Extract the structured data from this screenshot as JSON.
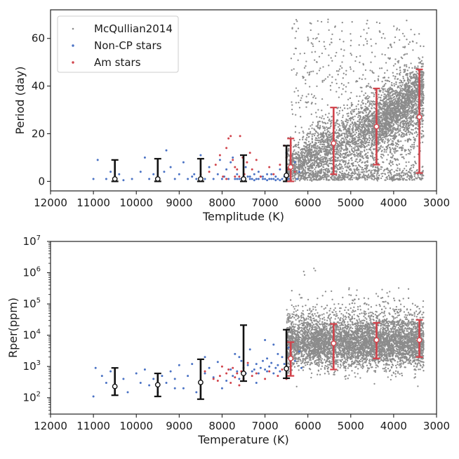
{
  "colors": {
    "mcq": "#8c8c8c",
    "noncp": "#4a72c4",
    "am": "#d1434b",
    "axis": "#222222",
    "black_err": "#111111"
  },
  "legend": {
    "items": [
      {
        "label": "McQullian2014",
        "color_key": "mcq",
        "marker": "dot"
      },
      {
        "label": "Non-CP stars",
        "color_key": "noncp",
        "marker": "dot"
      },
      {
        "label": "Am stars",
        "color_key": "am",
        "marker": "dot"
      }
    ],
    "location": "top-left"
  },
  "chart_data": [
    {
      "type": "scatter",
      "title": "",
      "xlabel": "Templitude (K)",
      "ylabel": "Period (day)",
      "xlim": [
        12000,
        3000
      ],
      "ylim": [
        -4,
        72
      ],
      "yscale": "linear",
      "xticks": [
        12000,
        11000,
        10000,
        9000,
        8000,
        7000,
        6000,
        5000,
        4000,
        3000
      ],
      "yticks": [
        0,
        20,
        40,
        60
      ],
      "series": [
        {
          "name": "McQullian2014",
          "color_key": "mcq",
          "distribution": "dense cloud 6500-3000 K, period 0-70 d"
        },
        {
          "name": "Non-CP stars",
          "color_key": "noncp",
          "points": [
            [
              11000,
              1
            ],
            [
              10900,
              9
            ],
            [
              10700,
              1
            ],
            [
              10600,
              4
            ],
            [
              10400,
              3
            ],
            [
              10300,
              0.5
            ],
            [
              10100,
              1
            ],
            [
              9900,
              4
            ],
            [
              9800,
              10
            ],
            [
              9700,
              1
            ],
            [
              9600,
              3
            ],
            [
              9500,
              1
            ],
            [
              9350,
              4
            ],
            [
              9300,
              13
            ],
            [
              9200,
              6
            ],
            [
              9100,
              1
            ],
            [
              9000,
              3
            ],
            [
              8900,
              8
            ],
            [
              8800,
              1
            ],
            [
              8700,
              2
            ],
            [
              8650,
              3
            ],
            [
              8600,
              1
            ],
            [
              8500,
              11
            ],
            [
              8400,
              1
            ],
            [
              8300,
              6
            ],
            [
              8200,
              1
            ],
            [
              8100,
              3
            ],
            [
              8050,
              9
            ],
            [
              8000,
              1
            ],
            [
              7950,
              2
            ],
            [
              7900,
              5
            ],
            [
              7850,
              1
            ],
            [
              7800,
              8
            ],
            [
              7750,
              10
            ],
            [
              7700,
              1
            ],
            [
              7650,
              3
            ],
            [
              7600,
              1
            ],
            [
              7550,
              1
            ],
            [
              7500,
              1
            ],
            [
              7450,
              6
            ],
            [
              7400,
              2
            ],
            [
              7350,
              1
            ],
            [
              7300,
              1
            ],
            [
              7250,
              3
            ],
            [
              7200,
              1
            ],
            [
              7150,
              1
            ],
            [
              7100,
              2
            ],
            [
              7050,
              1
            ],
            [
              7000,
              1
            ],
            [
              6950,
              3
            ],
            [
              6900,
              1
            ],
            [
              6850,
              1
            ],
            [
              6800,
              1
            ],
            [
              6750,
              2
            ],
            [
              6700,
              1
            ],
            [
              6650,
              5
            ],
            [
              6600,
              1
            ],
            [
              6550,
              2
            ],
            [
              6500,
              12
            ],
            [
              6450,
              1
            ],
            [
              6400,
              3
            ],
            [
              6300,
              8
            ],
            [
              6250,
              1
            ],
            [
              6200,
              4
            ],
            [
              7650,
              1
            ],
            [
              7350,
              2
            ],
            [
              7050,
              2
            ],
            [
              6850,
              3
            ],
            [
              6750,
              0.5
            ],
            [
              6650,
              0.5
            ],
            [
              6950,
              0.5
            ],
            [
              7250,
              0.5
            ],
            [
              7150,
              4
            ]
          ]
        },
        {
          "name": "Am stars",
          "color_key": "am",
          "points": [
            [
              8300,
              4
            ],
            [
              8150,
              7
            ],
            [
              8050,
              11
            ],
            [
              7980,
              2
            ],
            [
              7900,
              14
            ],
            [
              7850,
              18
            ],
            [
              7800,
              19
            ],
            [
              7750,
              9
            ],
            [
              7700,
              6
            ],
            [
              7650,
              5
            ],
            [
              7580,
              19
            ],
            [
              7520,
              10
            ],
            [
              7480,
              3
            ],
            [
              7420,
              8
            ],
            [
              7350,
              12
            ],
            [
              7300,
              5
            ],
            [
              7200,
              9
            ],
            [
              7100,
              2
            ],
            [
              6900,
              6
            ],
            [
              6800,
              3
            ],
            [
              6650,
              7
            ],
            [
              6550,
              15
            ],
            [
              6500,
              10
            ],
            [
              6450,
              5
            ],
            [
              6400,
              2
            ],
            [
              6300,
              4
            ],
            [
              8500,
              3
            ],
            [
              7600,
              2
            ],
            [
              7900,
              1
            ],
            [
              7700,
              2
            ]
          ]
        }
      ],
      "summary_points": [
        {
          "x": 10500,
          "median": 1.0,
          "low": 0.0,
          "high": 9.0,
          "color_key": "black_err"
        },
        {
          "x": 9500,
          "median": 1.0,
          "low": 0.0,
          "high": 9.5,
          "color_key": "black_err"
        },
        {
          "x": 8500,
          "median": 1.0,
          "low": 0.0,
          "high": 9.5,
          "color_key": "black_err"
        },
        {
          "x": 7500,
          "median": 1.0,
          "low": 0.0,
          "high": 11.0,
          "color_key": "black_err"
        },
        {
          "x": 6500,
          "median": 2.5,
          "low": 0.0,
          "high": 15.0,
          "color_key": "black_err"
        },
        {
          "x": 6400,
          "median": 6.0,
          "low": 0.0,
          "high": 18.0,
          "color_key": "am"
        },
        {
          "x": 5400,
          "median": 16.0,
          "low": 3.0,
          "high": 31.0,
          "color_key": "am"
        },
        {
          "x": 4400,
          "median": 23.0,
          "low": 7.0,
          "high": 39.0,
          "color_key": "am"
        },
        {
          "x": 3400,
          "median": 27.0,
          "low": 3.5,
          "high": 47.0,
          "color_key": "am"
        }
      ]
    },
    {
      "type": "scatter",
      "title": "",
      "xlabel": "Temperature (K)",
      "ylabel": "Rper(ppm)",
      "xlim": [
        12000,
        3000
      ],
      "ylim": [
        30,
        10000000
      ],
      "yscale": "log",
      "xticks": [
        12000,
        11000,
        10000,
        9000,
        8000,
        7000,
        6000,
        5000,
        4000,
        3000
      ],
      "yticks": [
        100,
        1000,
        10000,
        100000,
        1000000,
        10000000
      ],
      "ytick_exponents": [
        "2",
        "3",
        "4",
        "5",
        "6",
        "7"
      ],
      "series": [
        {
          "name": "McQullian2014",
          "color_key": "mcq",
          "distribution": "dense cloud 6500-3000 K, Rper ~1e2-1e6 ppm"
        },
        {
          "name": "Non-CP stars",
          "color_key": "noncp",
          "points": [
            [
              11000,
              110
            ],
            [
              10950,
              900
            ],
            [
              10800,
              500
            ],
            [
              10700,
              300
            ],
            [
              10600,
              700
            ],
            [
              10500,
              200
            ],
            [
              10300,
              400
            ],
            [
              10200,
              150
            ],
            [
              10000,
              600
            ],
            [
              9900,
              300
            ],
            [
              9800,
              800
            ],
            [
              9700,
              250
            ],
            [
              9600,
              400
            ],
            [
              9500,
              150
            ],
            [
              9400,
              500
            ],
            [
              9300,
              300
            ],
            [
              9200,
              700
            ],
            [
              9100,
              400
            ],
            [
              9000,
              1100
            ],
            [
              8900,
              200
            ],
            [
              8800,
              500
            ],
            [
              8700,
              1200
            ],
            [
              8600,
              150
            ],
            [
              8500,
              300
            ],
            [
              8400,
              600
            ],
            [
              8300,
              900
            ],
            [
              8200,
              450
            ],
            [
              8100,
              1400
            ],
            [
              8000,
              200
            ],
            [
              7900,
              350
            ],
            [
              7800,
              800
            ],
            [
              7750,
              500
            ],
            [
              7700,
              2500
            ],
            [
              7650,
              700
            ],
            [
              7600,
              400
            ],
            [
              7550,
              1500
            ],
            [
              7500,
              900
            ],
            [
              7450,
              600
            ],
            [
              7400,
              1100
            ],
            [
              7350,
              3500
            ],
            [
              7300,
              700
            ],
            [
              7250,
              800
            ],
            [
              7200,
              1200
            ],
            [
              7150,
              600
            ],
            [
              7100,
              900
            ],
            [
              7050,
              1500
            ],
            [
              7000,
              800
            ],
            [
              6950,
              700
            ],
            [
              6900,
              1000
            ],
            [
              6850,
              1300
            ],
            [
              6800,
              600
            ],
            [
              6750,
              900
            ],
            [
              6700,
              1100
            ],
            [
              6650,
              700
            ],
            [
              6600,
              2000
            ],
            [
              6550,
              1200
            ],
            [
              6500,
              900
            ],
            [
              6450,
              4000
            ],
            [
              6400,
              800
            ],
            [
              6300,
              1500
            ],
            [
              6200,
              3000
            ],
            [
              6150,
              900
            ],
            [
              7000,
              7000
            ],
            [
              6800,
              5000
            ],
            [
              7200,
              300
            ],
            [
              7600,
              2000
            ],
            [
              8400,
              2000
            ],
            [
              9100,
              200
            ],
            [
              6700,
              2500
            ],
            [
              6950,
              1800
            ]
          ]
        },
        {
          "name": "Am stars",
          "color_key": "am",
          "points": [
            [
              8400,
              700
            ],
            [
              8200,
              400
            ],
            [
              8100,
              350
            ],
            [
              8000,
              1000
            ],
            [
              7900,
              600
            ],
            [
              7800,
              300
            ],
            [
              7750,
              900
            ],
            [
              7700,
              450
            ],
            [
              7600,
              250
            ],
            [
              7550,
              700
            ],
            [
              7500,
              400
            ],
            [
              7400,
              1300
            ],
            [
              7300,
              500
            ],
            [
              7200,
              600
            ],
            [
              7000,
              400
            ],
            [
              6900,
              700
            ],
            [
              6700,
              500
            ],
            [
              6600,
              800
            ],
            [
              6500,
              400
            ],
            [
              6400,
              600
            ],
            [
              7650,
              600
            ],
            [
              7850,
              800
            ],
            [
              8050,
              500
            ]
          ]
        }
      ],
      "summary_points": [
        {
          "x": 10500,
          "median": 230,
          "low": 120,
          "high": 900,
          "color_key": "black_err"
        },
        {
          "x": 9500,
          "median": 260,
          "low": 110,
          "high": 600,
          "color_key": "black_err"
        },
        {
          "x": 8500,
          "median": 310,
          "low": 90,
          "high": 1700,
          "color_key": "black_err"
        },
        {
          "x": 7500,
          "median": 600,
          "low": 340,
          "high": 21000,
          "color_key": "black_err"
        },
        {
          "x": 6500,
          "median": 850,
          "low": 420,
          "high": 15000,
          "color_key": "black_err"
        },
        {
          "x": 6400,
          "median": 1800,
          "low": 500,
          "high": 6000,
          "color_key": "am"
        },
        {
          "x": 5400,
          "median": 5500,
          "low": 800,
          "high": 23000,
          "color_key": "am"
        },
        {
          "x": 4400,
          "median": 7000,
          "low": 1800,
          "high": 25000,
          "color_key": "am"
        },
        {
          "x": 3400,
          "median": 7000,
          "low": 2000,
          "high": 31000,
          "color_key": "am"
        }
      ]
    }
  ]
}
